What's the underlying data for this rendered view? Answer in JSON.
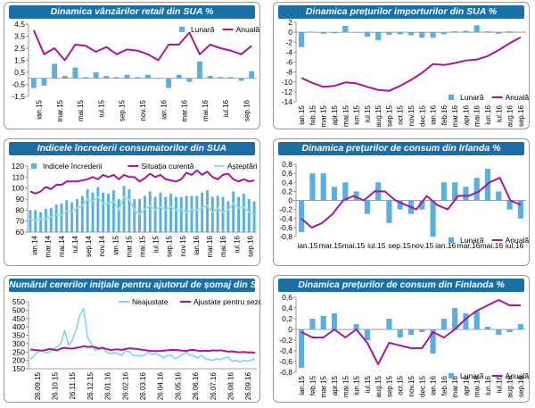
{
  "colors": {
    "bar": "#5aaee0",
    "line": "#a4179e",
    "line2": "#8de6c8",
    "raw": "#7fd3f4",
    "title_bg": "#1b6fa6"
  },
  "chart_data": [
    {
      "id": "retail",
      "type": "bar",
      "title": "Dinamica vânzărilor retail din SUA %",
      "legend_position": "top-right",
      "ylim": [
        -1.5,
        4.5
      ],
      "yticks": [
        "4,5",
        "3,5",
        "2,5",
        "1,5",
        "0,5",
        "-0,5",
        "-1,5"
      ],
      "ytick_values": [
        4.5,
        3.5,
        2.5,
        1.5,
        0.5,
        -0.5,
        -1.5
      ],
      "xlabels": [
        "ian.15",
        "mar.15",
        "mai.15",
        "iul.15",
        "sep.15",
        "nov.15",
        "ian.16",
        "mar.16",
        "mai.16",
        "iul.16",
        "sep.16"
      ],
      "x_rot": true,
      "series": [
        {
          "name": "Lunară",
          "kind": "bar",
          "values": [
            -0.8,
            -0.6,
            1.2,
            0.2,
            0.9,
            0.1,
            0.5,
            0.2,
            0.1,
            0.3,
            0.1,
            0.3,
            0.0,
            -0.8,
            0.3,
            -0.3,
            1.4,
            0.2,
            0.1,
            0.1,
            -0.2,
            0.6
          ]
        },
        {
          "name": "Anuală",
          "kind": "line",
          "values": [
            4.0,
            2.0,
            2.5,
            1.5,
            2.8,
            2.7,
            2.2,
            2.6,
            2.0,
            2.4,
            2.3,
            2.0,
            1.5,
            2.8,
            2.8,
            3.8,
            2.0,
            2.8,
            2.5,
            2.3,
            2.0,
            2.7
          ]
        }
      ]
    },
    {
      "id": "import",
      "type": "bar",
      "title": "Dinamica prețurilor importurilor din SUA %",
      "legend_position": "bottom-right",
      "ylim": [
        -14,
        2
      ],
      "yticks": [
        "2",
        "0",
        "-2",
        "-4",
        "-6",
        "-8",
        "-10",
        "-12",
        "-14"
      ],
      "ytick_values": [
        2,
        0,
        -2,
        -4,
        -6,
        -8,
        -10,
        -12,
        -14
      ],
      "xlabels": [
        "ian.15",
        "feb.15",
        "mar.15",
        "apr.15",
        "mai.15",
        "iun.15",
        "iul.15",
        "aug.15",
        "sep.15",
        "oct.15",
        "nov.15",
        "dec.15",
        "ian.16",
        "feb.16",
        "mar.16",
        "apr.16",
        "mai.16",
        "iun.16",
        "iul.16",
        "aug.16",
        "sep.16"
      ],
      "x_rot": true,
      "series": [
        {
          "name": "Lunară",
          "kind": "bar",
          "values": [
            -3.0,
            0.1,
            -0.3,
            -0.2,
            1.3,
            -0.1,
            -0.9,
            -1.6,
            -0.5,
            -0.4,
            -0.6,
            -1.1,
            -1.1,
            -0.4,
            0.2,
            0.3,
            1.4,
            0.2,
            -0.3,
            0.2,
            0.1
          ]
        },
        {
          "name": "Anuală",
          "kind": "line",
          "values": [
            -9.2,
            -10.2,
            -11.0,
            -10.8,
            -10.1,
            -10.3,
            -11.0,
            -11.6,
            -11.8,
            -10.8,
            -9.6,
            -8.2,
            -6.4,
            -6.6,
            -6.2,
            -5.7,
            -5.5,
            -4.8,
            -3.6,
            -2.2,
            -1.0
          ]
        }
      ]
    },
    {
      "id": "conf",
      "type": "bar",
      "title": "Indicele încrederii consumatorilor din SUA",
      "legend_position": "top",
      "ylim": [
        60,
        120
      ],
      "yticks": [
        "120",
        "110",
        "100",
        "90",
        "80",
        "70",
        "60"
      ],
      "ytick_values": [
        120,
        110,
        100,
        90,
        80,
        70,
        60
      ],
      "xlabels": [
        "ian.14",
        "mar.14",
        "mai.14",
        "iul.14",
        "sep.14",
        "nov.14",
        "ian.15",
        "mar.15",
        "mai.15",
        "iul.15",
        "sep.15",
        "nov.15",
        "ian.16",
        "mar.16",
        "mai.16",
        "iul.16",
        "sep.16"
      ],
      "x_rot": true,
      "series": [
        {
          "name": "Indicele încrederii",
          "kind": "bar",
          "values": [
            80,
            80,
            78,
            81,
            82,
            85,
            86,
            89,
            87,
            90,
            93,
            99,
            96,
            101,
            96,
            95,
            98,
            90,
            102,
            99,
            90,
            90,
            93,
            97,
            92,
            96,
            92,
            95,
            92,
            92,
            93,
            93,
            93,
            96,
            98,
            92,
            93,
            92,
            88,
            97,
            92,
            95,
            90,
            88
          ]
        },
        {
          "name": "Situația curentă",
          "kind": "line",
          "values": [
            97,
            95,
            97,
            101,
            99,
            103,
            103,
            106,
            106,
            106,
            107,
            108,
            110,
            108,
            112,
            110,
            112,
            108,
            112,
            110,
            110,
            106,
            109,
            113,
            110,
            112,
            108,
            107,
            106,
            108,
            114,
            112,
            116,
            112,
            115,
            110,
            108,
            112,
            113,
            108,
            106,
            108,
            106,
            107
          ]
        },
        {
          "name": "Așteptări",
          "kind": "line2",
          "values": [
            72,
            71,
            72,
            72,
            74,
            76,
            76,
            79,
            79,
            82,
            84,
            90,
            88,
            92,
            86,
            86,
            88,
            80,
            92,
            90,
            80,
            76,
            81,
            84,
            80,
            83,
            80,
            83,
            80,
            80,
            78,
            80,
            80,
            82,
            84,
            78,
            82,
            78,
            80,
            86,
            82,
            83,
            78,
            76
          ]
        }
      ]
    },
    {
      "id": "irl",
      "type": "bar",
      "title": "Dinamica prețurilor de consum din Irlanda %",
      "legend_position": "bottom-right",
      "ylim": [
        -0.8,
        0.8
      ],
      "yticks": [
        "0,8",
        "0,6",
        "0,4",
        "0,2",
        "0",
        "-0,2",
        "-0,4",
        "-0,6",
        "-0,8"
      ],
      "ytick_values": [
        0.8,
        0.6,
        0.4,
        0.2,
        0,
        -0.2,
        -0.4,
        -0.6,
        -0.8
      ],
      "xlabels": [
        "ian.15",
        "mar.15",
        "mai.15",
        "iul.15",
        "sep.15",
        "nov.15",
        "ian.16",
        "mar.16",
        "mai.16",
        "iul.16"
      ],
      "x_rot": false,
      "series": [
        {
          "name": "Lunară",
          "kind": "bar",
          "values": [
            -0.7,
            0.6,
            0.6,
            0.3,
            0.4,
            0.2,
            -0.3,
            0.4,
            -0.5,
            -0.2,
            -0.3,
            -0.2,
            -0.8,
            0.4,
            0.4,
            0.3,
            0.5,
            0.7,
            0.2,
            -0.2,
            -0.4
          ]
        },
        {
          "name": "Anuală",
          "kind": "line",
          "values": [
            -0.4,
            -0.6,
            -0.5,
            -0.3,
            0.0,
            0.1,
            0.0,
            0.2,
            0.2,
            0.0,
            -0.1,
            -0.2,
            0.1,
            -0.1,
            -0.2,
            0.1,
            0.1,
            0.2,
            0.4,
            0.5,
            0.0,
            -0.1
          ]
        }
      ]
    },
    {
      "id": "claims",
      "type": "line",
      "title": "Numărul cererilor inițiale pentru ajutorul de șomaj din SUA (mii)",
      "legend_position": "top",
      "ylim": [
        150,
        550
      ],
      "yticks": [
        "550",
        "500",
        "450",
        "400",
        "350",
        "300",
        "250",
        "200",
        "150"
      ],
      "ytick_values": [
        550,
        500,
        450,
        400,
        350,
        300,
        250,
        200,
        150
      ],
      "xlabels": [
        "26.09.15",
        "26.10.15",
        "26.11.15",
        "26.12.15",
        "26.01.16",
        "26.02.16",
        "26.03.16",
        "26.04.16",
        "26.05.16",
        "26.06.16",
        "26.07.16",
        "26.08.16",
        "26.09.16"
      ],
      "x_rot": true,
      "series": [
        {
          "name": "Neajustate",
          "kind": "raw",
          "values": [
            205,
            230,
            250,
            260,
            245,
            250,
            270,
            280,
            300,
            380,
            290,
            320,
            380,
            470,
            510,
            340,
            300,
            260,
            270,
            280,
            250,
            240,
            245,
            240,
            230,
            260,
            250,
            230,
            230,
            225,
            230,
            250,
            235,
            240,
            230,
            215,
            230,
            230,
            210,
            220,
            235,
            250,
            230,
            225,
            215,
            230,
            210,
            205,
            200,
            210,
            205,
            215,
            220,
            195,
            200,
            190,
            200,
            195,
            200,
            210
          ]
        },
        {
          "name": "Ajustate pentru sezonalitate",
          "kind": "line",
          "values": [
            265,
            262,
            260,
            258,
            262,
            268,
            264,
            260,
            270,
            275,
            272,
            270,
            275,
            278,
            285,
            280,
            282,
            278,
            270,
            275,
            268,
            262,
            264,
            266,
            262,
            268,
            272,
            270,
            268,
            264,
            262,
            258,
            255,
            256,
            255,
            258,
            260,
            262,
            262,
            260,
            258,
            256,
            262,
            262,
            258,
            255,
            258,
            256,
            260,
            258,
            260,
            256,
            252,
            254,
            250,
            248,
            250,
            247,
            248,
            245
          ]
        }
      ]
    },
    {
      "id": "fin",
      "type": "bar",
      "title": "Dinamica prețurilor de consum din Finlanda %",
      "legend_position": "bottom-right",
      "ylim": [
        -0.8,
        0.6
      ],
      "yticks": [
        "0,6",
        "0,4",
        "0,2",
        "0",
        "-0,2",
        "-0,4",
        "-0,6",
        "-0,8"
      ],
      "ytick_values": [
        0.6,
        0.4,
        0.2,
        0,
        -0.2,
        -0.4,
        -0.6,
        -0.8
      ],
      "xlabels": [
        "ian.15",
        "feb.15",
        "mar.15",
        "apr.15",
        "mai.15",
        "iun.15",
        "iul.15",
        "aug.15",
        "sep.15",
        "oct.15",
        "nov.15",
        "dec.15",
        "ian.16",
        "feb.16",
        "mar.16",
        "apr.16",
        "mai.16",
        "iun.16",
        "iul.16",
        "aug.16",
        "sep.16"
      ],
      "x_rot": true,
      "series": [
        {
          "name": "Lunară",
          "kind": "bar",
          "values": [
            -0.72,
            0.2,
            0.25,
            0.3,
            0.0,
            0.1,
            -0.2,
            0.0,
            0.2,
            -0.15,
            -0.1,
            -0.05,
            -0.45,
            0.2,
            0.4,
            0.3,
            0.35,
            0.05,
            -0.1,
            -0.05,
            0.1
          ]
        },
        {
          "name": "Anuală",
          "kind": "line",
          "values": [
            -0.05,
            -0.15,
            -0.15,
            0.0,
            -0.15,
            0.0,
            -0.25,
            -0.65,
            -0.25,
            -0.3,
            -0.35,
            -0.35,
            -0.05,
            -0.15,
            0.0,
            0.2,
            0.35,
            0.45,
            0.55,
            0.45,
            0.45
          ]
        }
      ]
    }
  ]
}
